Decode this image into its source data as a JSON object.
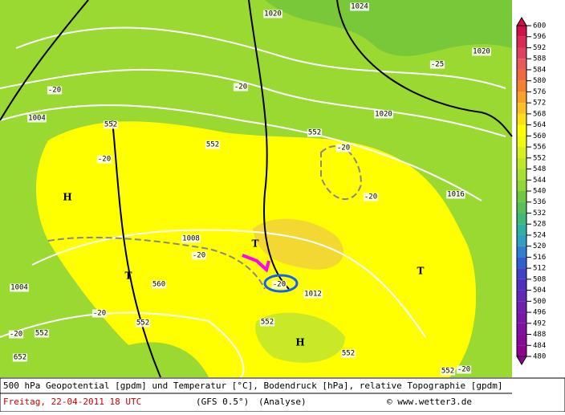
{
  "map": {
    "labels": [
      "1020",
      "1024",
      "1020",
      "-25",
      "1004",
      "-20",
      "-20",
      "552",
      "1020",
      "552",
      "-20",
      "552",
      "-20",
      "H",
      "-20",
      "1016",
      "1008",
      "T",
      "-20",
      "-20",
      "T",
      "1004",
      "T",
      "560",
      "-20",
      "1012",
      "552",
      "-20",
      "552",
      "H",
      "552",
      "552",
      "-20",
      "552",
      "652"
    ]
  },
  "colorbar": {
    "ticks": [
      600,
      596,
      592,
      588,
      584,
      580,
      576,
      572,
      568,
      564,
      560,
      556,
      552,
      548,
      544,
      540,
      536,
      532,
      528,
      524,
      520,
      516,
      512,
      508,
      504,
      500,
      496,
      492,
      488,
      484,
      480
    ],
    "band_colors": [
      "#d0104a",
      "#d82a55",
      "#e04060",
      "#e85a5a",
      "#f06a40",
      "#f48030",
      "#f8a028",
      "#fcc020",
      "#fee018",
      "#ffff00",
      "#f0fa10",
      "#d8f020",
      "#c0e828",
      "#a8e030",
      "#90d838",
      "#70c840",
      "#58c058",
      "#40b878",
      "#30b0a0",
      "#30a0c0",
      "#3080d0",
      "#3060d0",
      "#4040c8",
      "#5030c0",
      "#6028b8",
      "#7020b0",
      "#7818a8",
      "#8010a0",
      "#880898",
      "#900090"
    ]
  },
  "footer": {
    "description": "500 hPa Geopotential [gpdm] und Temperatur [°C], Bodendruck [hPa], relative Topographie [gpdm]",
    "date": "Freitag, 22-04-2011  18 UTC",
    "model": "(GFS 0.5°)",
    "analysis": "(Analyse)",
    "copyright": "© www.wetter3.de"
  }
}
